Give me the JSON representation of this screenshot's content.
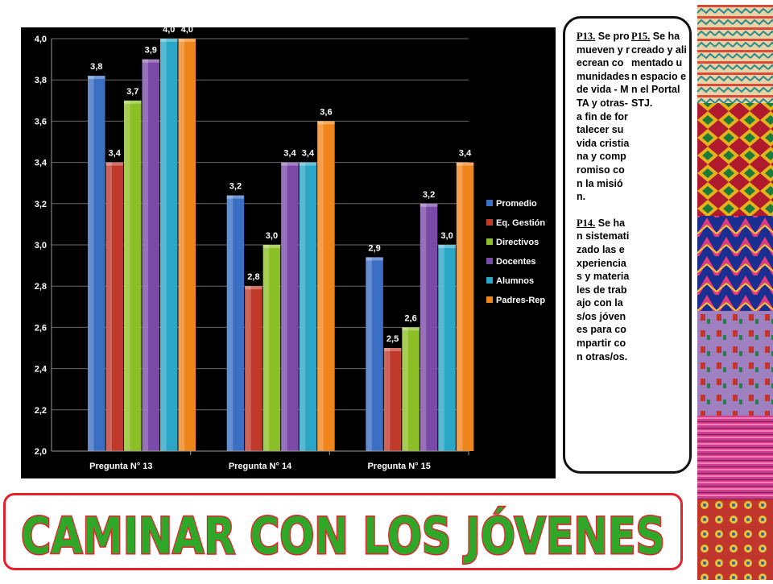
{
  "chart_data": {
    "type": "bar",
    "categories": [
      "Pregunta N° 13",
      "Pregunta N° 14",
      "Pregunta N° 15"
    ],
    "series": [
      {
        "name": "Promedio",
        "values": [
          3.82,
          3.24,
          2.94
        ],
        "labels": [
          "3,8",
          "3,2",
          "2,9"
        ]
      },
      {
        "name": "Eq. Gestión",
        "values": [
          3.4,
          2.8,
          2.5
        ],
        "labels": [
          "3,4",
          "2,8",
          "2,5"
        ]
      },
      {
        "name": "Directivos",
        "values": [
          3.7,
          3.0,
          2.6
        ],
        "labels": [
          "3,7",
          "3,0",
          "2,6"
        ]
      },
      {
        "name": "Docentes",
        "values": [
          3.9,
          3.4,
          3.2
        ],
        "labels": [
          "3,9",
          "3,4",
          "3,2"
        ]
      },
      {
        "name": "Alumnos",
        "values": [
          4.0,
          3.4,
          3.0
        ],
        "labels": [
          "4,0",
          "3,4",
          "3,0"
        ]
      },
      {
        "name": "Padres-Rep",
        "values": [
          4.0,
          3.6,
          3.4
        ],
        "labels": [
          "4,0",
          "3,6",
          "3,4"
        ]
      }
    ],
    "ylim": [
      2.0,
      4.0
    ],
    "yticks": [
      "2,0",
      "2,2",
      "2,4",
      "2,6",
      "2,8",
      "3,0",
      "3,2",
      "3,4",
      "3,6",
      "3,8",
      "4,0"
    ],
    "xlabel": "",
    "ylabel": "",
    "grid": true,
    "legend_position": "right",
    "colors": [
      "#3a6fc4",
      "#c0392b",
      "#8cbf26",
      "#7b4aa8",
      "#2aa6c6",
      "#f0851c"
    ]
  },
  "notes": {
    "p13_label": "P13.",
    "p13_text": " Se promueven y recrean comunidades de vida - MTA y otras- a fin de fortalecer su vida cristiana y compromiso con la misión.",
    "p14_label": "P14.",
    "p14_text": " Se han sistematizado las experiencias y materiales de trabajo con las/os jóvenes para compartir con otras/os.",
    "p15_label": "P15.",
    "p15_text": " Se ha creado y alimentado un espacio en el Portal STJ."
  },
  "banner": {
    "title": "CAMINAR CON LOS JÓVENES",
    "fill_color": "#2fa82a",
    "outline_color": "#e8202c"
  }
}
